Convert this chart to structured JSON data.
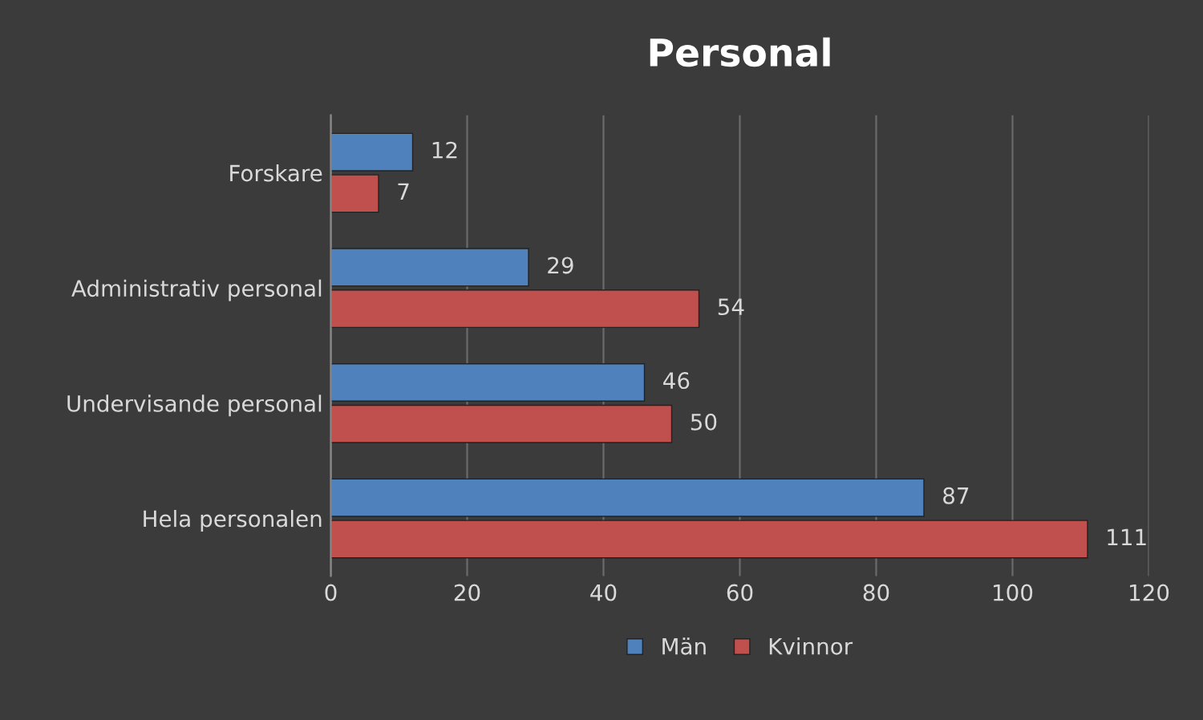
{
  "chart_data": {
    "type": "bar",
    "orientation": "horizontal",
    "title": "Personal",
    "categories": [
      "Forskare",
      "Administrativ personal",
      "Undervisande personal",
      "Hela personalen"
    ],
    "series": [
      {
        "name": "Män",
        "color": "#4f81bd",
        "values": [
          12,
          29,
          46,
          87
        ]
      },
      {
        "name": "Kvinnor",
        "color": "#c0504d",
        "values": [
          7,
          54,
          50,
          111
        ]
      }
    ],
    "xlim": [
      0,
      120
    ],
    "xticks": [
      0,
      20,
      40,
      60,
      80,
      100,
      120
    ],
    "grid": "x",
    "legend": "bottom",
    "data_labels": true
  }
}
